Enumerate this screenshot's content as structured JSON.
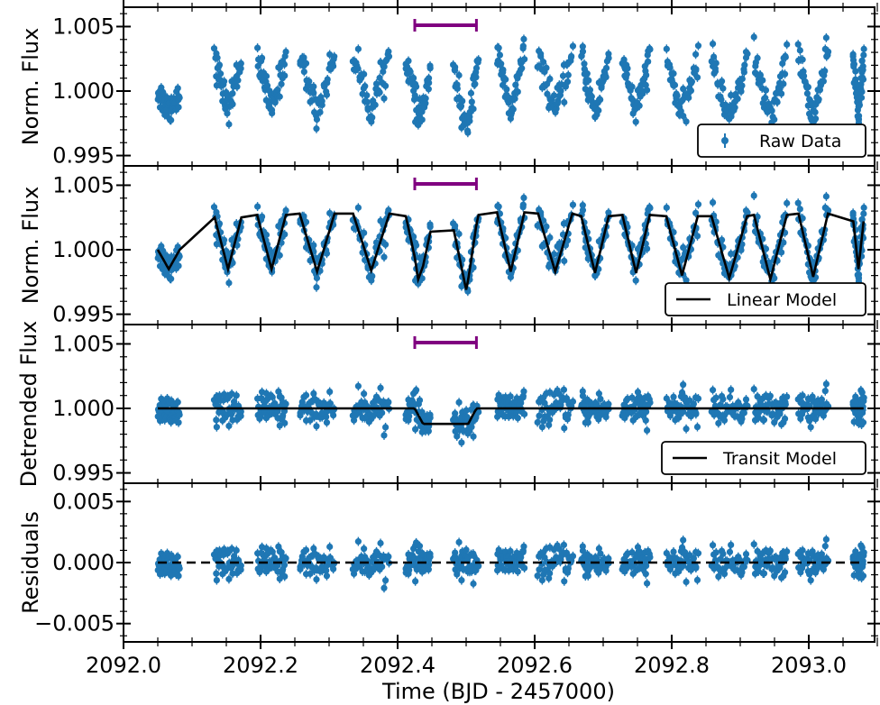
{
  "chart_data": {
    "type": "scatter",
    "xlabel": "Time (BJD - 2457000)",
    "xlim": [
      2092.0,
      2093.1
    ],
    "x_ticks": [
      2092.0,
      2092.2,
      2092.4,
      2092.6,
      2092.8,
      2093.0
    ],
    "x_tick_labels": [
      "2092.0",
      "2092.2",
      "2092.4",
      "2092.6",
      "2092.8",
      "2093.0"
    ],
    "cadence_cycles": 16,
    "transit_window": [
      2092.375,
      2092.465
    ],
    "transit_depth": 0.0012,
    "colors": {
      "data": "#1f77b4",
      "model": "#000000",
      "window_bar": "#800080"
    },
    "panels": [
      {
        "ylabel": "Norm. Flux",
        "ylim": [
          0.9942,
          1.0065
        ],
        "y_ticks": [
          0.995,
          1.0,
          1.005
        ],
        "y_tick_labels": [
          "0.995",
          "1.000",
          "1.005"
        ],
        "legend": {
          "label": "Raw Data",
          "placement": "lower right",
          "marker": "errorbar-point"
        },
        "series": "raw",
        "model": null,
        "show_window": true
      },
      {
        "ylabel": "Norm. Flux",
        "ylim": [
          0.9942,
          1.0065
        ],
        "y_ticks": [
          0.995,
          1.0,
          1.005
        ],
        "y_tick_labels": [
          "0.995",
          "1.000",
          "1.005"
        ],
        "legend": {
          "label": "Linear Model",
          "placement": "lower right",
          "marker": "line"
        },
        "series": "raw",
        "model": "linear",
        "show_window": true
      },
      {
        "ylabel": "Detrended Flux",
        "ylim": [
          0.9942,
          1.0065
        ],
        "y_ticks": [
          0.995,
          1.0,
          1.005
        ],
        "y_tick_labels": [
          "0.995",
          "1.000",
          "1.005"
        ],
        "legend": {
          "label": "Transit Model",
          "placement": "lower right",
          "marker": "line"
        },
        "series": "detrended",
        "model": "transit",
        "show_window": true
      },
      {
        "ylabel": "Residuals",
        "ylim": [
          -0.0065,
          0.0065
        ],
        "y_ticks": [
          -0.005,
          0.0,
          0.005
        ],
        "y_tick_labels": [
          "−0.005",
          "0.000",
          "0.005"
        ],
        "legend": null,
        "series": "residuals",
        "model": "zero-dashed",
        "show_window": false
      }
    ],
    "data_segments": [
      {
        "start": 2092.0,
        "end": 2092.032,
        "low": 0.9985,
        "high": 1.0
      },
      {
        "start": 2092.083,
        "end": 2092.122,
        "low": 0.9985,
        "high": 1.0025
      },
      {
        "start": 2092.145,
        "end": 2092.187,
        "low": 0.9985,
        "high": 1.0027
      },
      {
        "start": 2092.207,
        "end": 2092.258,
        "low": 0.9983,
        "high": 1.0028
      },
      {
        "start": 2092.285,
        "end": 2092.338,
        "low": 0.9984,
        "high": 1.0028
      },
      {
        "start": 2092.362,
        "end": 2092.398,
        "low": 0.9982,
        "high": 1.0026
      },
      {
        "start": 2092.432,
        "end": 2092.468,
        "low": 0.9981,
        "high": 1.0027
      },
      {
        "start": 2092.495,
        "end": 2092.535,
        "low": 0.9983,
        "high": 1.0029
      },
      {
        "start": 2092.555,
        "end": 2092.605,
        "low": 0.9983,
        "high": 1.0028
      },
      {
        "start": 2092.618,
        "end": 2092.658,
        "low": 0.9982,
        "high": 1.0026
      },
      {
        "start": 2092.678,
        "end": 2092.718,
        "low": 0.9982,
        "high": 1.0027
      },
      {
        "start": 2092.742,
        "end": 2092.788,
        "low": 0.998,
        "high": 1.0026
      },
      {
        "start": 2092.808,
        "end": 2092.86,
        "low": 0.9978,
        "high": 1.0026
      },
      {
        "start": 2092.87,
        "end": 2092.918,
        "low": 0.9977,
        "high": 1.0027
      },
      {
        "start": 2092.935,
        "end": 2092.978,
        "low": 0.9979,
        "high": 1.0028
      },
      {
        "start": 2093.015,
        "end": 2093.03,
        "low": 0.9985,
        "high": 1.0022
      }
    ]
  }
}
